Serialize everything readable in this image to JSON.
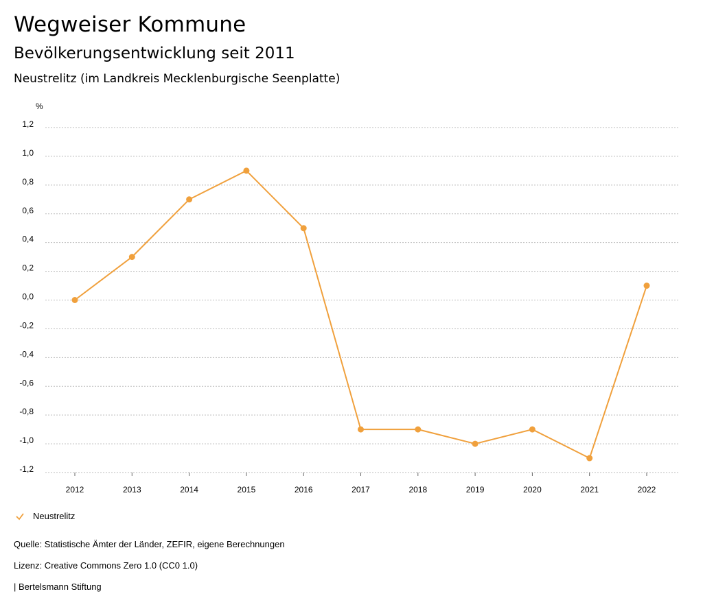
{
  "header": {
    "title": "Wegweiser Kommune",
    "subtitle": "Bevölkerungsentwicklung seit 2011",
    "location": "Neustrelitz (im Landkreis Mecklenburgische Seenplatte)"
  },
  "legend": {
    "label": "Neustrelitz",
    "icon": "checkmark-icon"
  },
  "footer": {
    "source": "Quelle: Statistische Ämter der Länder, ZEFIR, eigene Berechnungen",
    "license": "Lizenz: Creative Commons Zero 1.0 (CC0 1.0)",
    "publisher": "| Bertelsmann Stiftung"
  },
  "colors": {
    "series": "#f0a03c",
    "grid": "#bbbbbb",
    "axis": "#666666"
  },
  "chart_data": {
    "type": "line",
    "title": "Bevölkerungsentwicklung seit 2011",
    "subtitle": "Neustrelitz (im Landkreis Mecklenburgische Seenplatte)",
    "xlabel": "",
    "ylabel": "%",
    "categories": [
      "2012",
      "2013",
      "2014",
      "2015",
      "2016",
      "2017",
      "2018",
      "2019",
      "2020",
      "2021",
      "2022"
    ],
    "series": [
      {
        "name": "Neustrelitz",
        "values": [
          0.0,
          0.3,
          0.7,
          0.9,
          0.5,
          -0.9,
          -0.9,
          -1.0,
          -0.9,
          -1.1,
          0.1
        ]
      }
    ],
    "ylim": [
      -1.2,
      1.2
    ],
    "yticks": [
      "1,2",
      "1,0",
      "0,8",
      "0,6",
      "0,4",
      "0,2",
      "0,0",
      "-0,2",
      "-0,4",
      "-0,6",
      "-0,8",
      "-1,0",
      "-1,2"
    ],
    "grid": true,
    "legend_position": "bottom-left"
  }
}
